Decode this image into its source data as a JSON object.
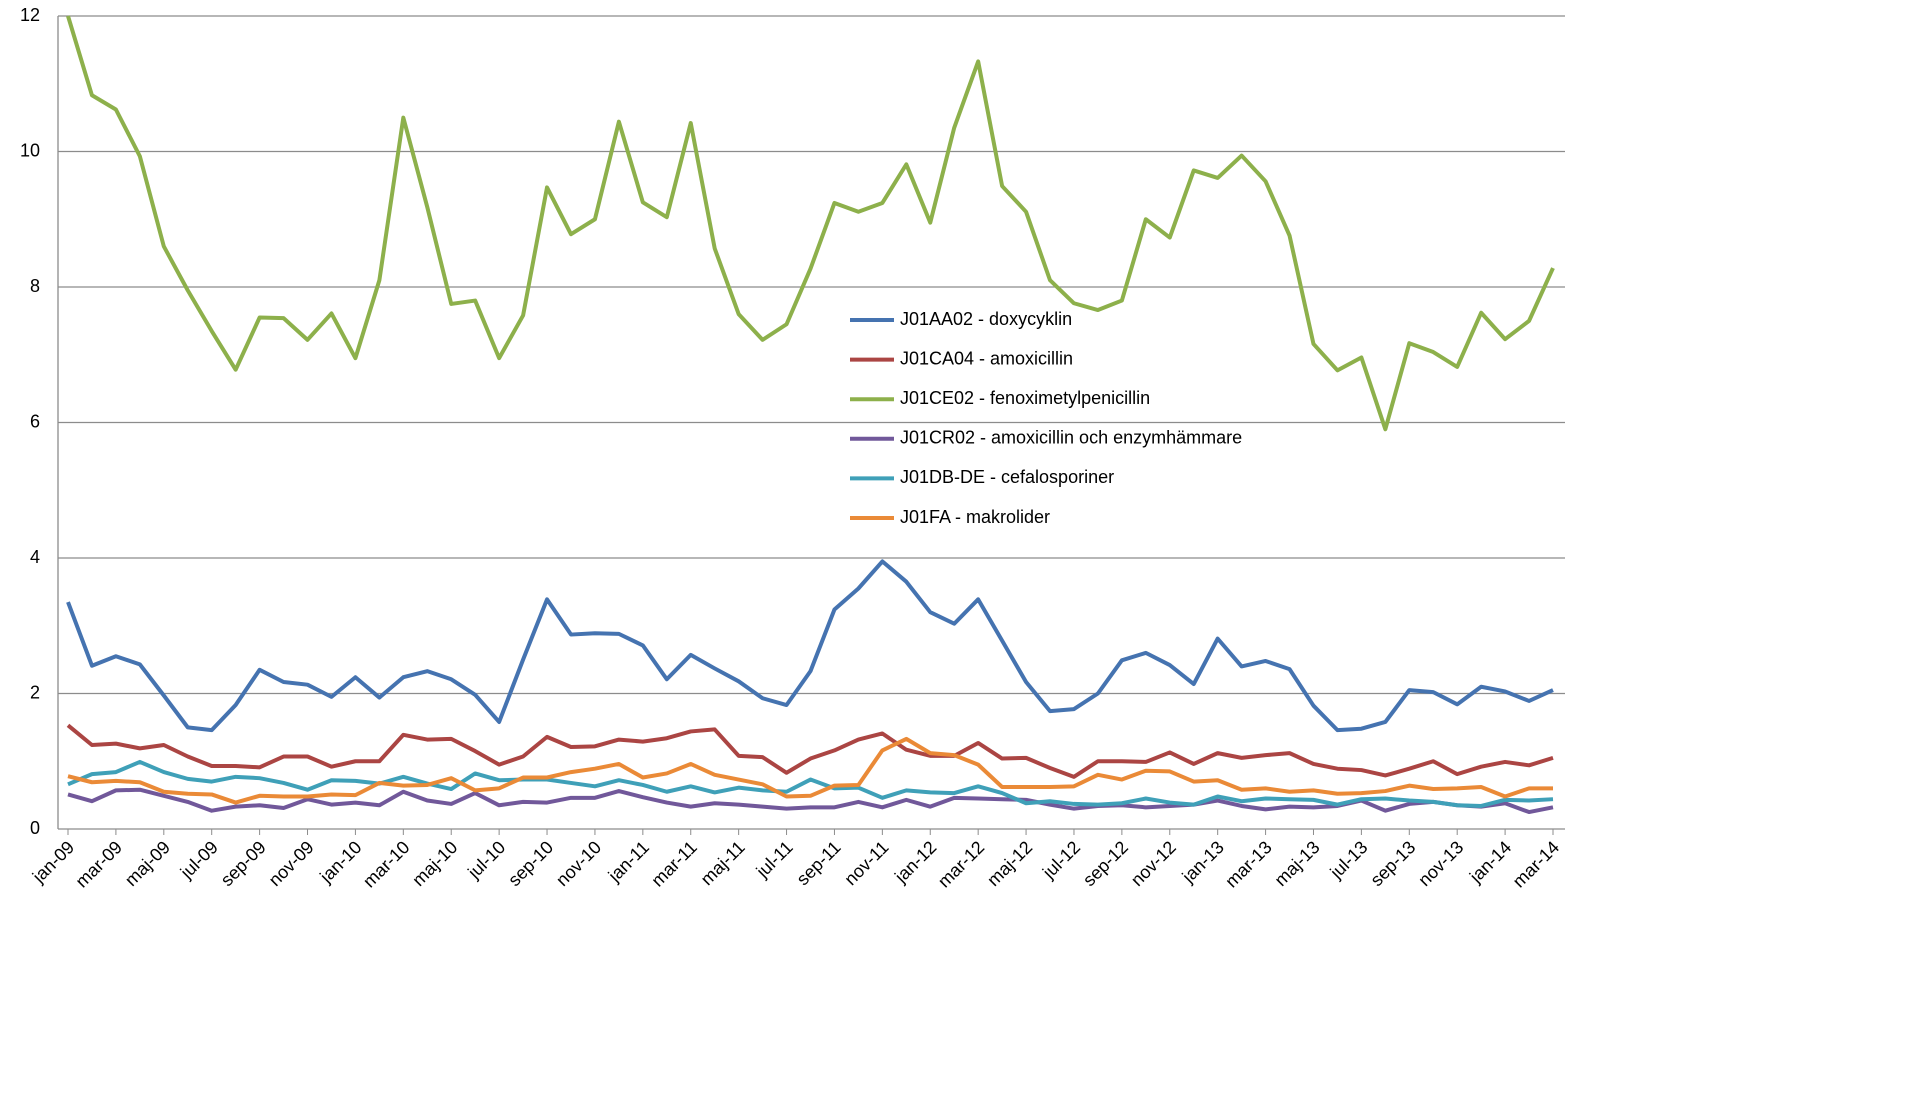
{
  "chart_data": {
    "type": "line",
    "categories": [
      "jan-09",
      null,
      "mar-09",
      null,
      "maj-09",
      null,
      "jul-09",
      null,
      "sep-09",
      null,
      "nov-09",
      null,
      "jan-10",
      null,
      "mar-10",
      null,
      "maj-10",
      null,
      "jul-10",
      null,
      "sep-10",
      null,
      "nov-10",
      null,
      "jan-11",
      null,
      "mar-11",
      null,
      "maj-11",
      null,
      "jul-11",
      null,
      "sep-11",
      null,
      "nov-11",
      null,
      "jan-12",
      null,
      "mar-12",
      null,
      "maj-12",
      null,
      "jul-12",
      null,
      "sep-12",
      null,
      "nov-12",
      null,
      "jan-13",
      null,
      "mar-13",
      null,
      "maj-13",
      null,
      "jul-13",
      null,
      "sep-13",
      null,
      "nov-13",
      null,
      "jan-14",
      null,
      "mar-14"
    ],
    "series": [
      {
        "name": "J01AA02 - doxycyklin",
        "color": "#4573b0",
        "values": [
          3.35,
          2.41,
          2.55,
          2.43,
          1.97,
          1.5,
          1.46,
          1.83,
          2.35,
          2.17,
          2.13,
          1.95,
          2.24,
          1.94,
          2.24,
          2.33,
          2.21,
          1.98,
          1.58,
          2.5,
          3.39,
          2.87,
          2.89,
          2.88,
          2.71,
          2.21,
          2.57,
          2.37,
          2.18,
          1.93,
          1.83,
          2.33,
          3.24,
          3.55,
          3.95,
          3.65,
          3.2,
          3.03,
          3.39,
          2.78,
          2.17,
          1.74,
          1.77,
          2.0,
          2.49,
          2.6,
          2.42,
          2.14,
          2.81,
          2.4,
          2.48,
          2.36,
          1.82,
          1.46,
          1.48,
          1.58,
          2.05,
          2.02,
          1.84,
          2.1,
          2.03,
          1.89,
          2.05
        ]
      },
      {
        "name": "J01CA04 - amoxicillin",
        "color": "#ab4543",
        "values": [
          1.53,
          1.24,
          1.26,
          1.19,
          1.24,
          1.07,
          0.93,
          0.93,
          0.91,
          1.07,
          1.07,
          0.92,
          1.0,
          1.0,
          1.39,
          1.32,
          1.33,
          1.15,
          0.95,
          1.07,
          1.36,
          1.21,
          1.22,
          1.32,
          1.29,
          1.34,
          1.44,
          1.47,
          1.08,
          1.06,
          0.83,
          1.04,
          1.16,
          1.32,
          1.41,
          1.17,
          1.08,
          1.08,
          1.27,
          1.04,
          1.05,
          0.9,
          0.77,
          1.0,
          1.0,
          0.99,
          1.13,
          0.96,
          1.12,
          1.05,
          1.09,
          1.12,
          0.96,
          0.89,
          0.87,
          0.79,
          0.89,
          1.0,
          0.81,
          0.92,
          0.99,
          0.94,
          1.05
        ]
      },
      {
        "name": "J01CE02 - fenoximetylpenicillin",
        "color": "#8db04b",
        "values": [
          12,
          10.83,
          10.62,
          9.93,
          8.6,
          7.95,
          7.35,
          6.78,
          7.55,
          7.54,
          7.22,
          7.61,
          6.95,
          8.1,
          10.5,
          9.18,
          7.75,
          7.8,
          6.95,
          7.58,
          9.47,
          8.78,
          9.0,
          10.44,
          9.25,
          9.03,
          10.42,
          8.57,
          7.6,
          7.22,
          7.45,
          8.27,
          9.24,
          9.11,
          9.24,
          9.81,
          8.95,
          10.35,
          11.33,
          9.49,
          9.11,
          8.1,
          7.76,
          7.66,
          7.8,
          9.0,
          8.73,
          9.72,
          9.61,
          9.94,
          9.56,
          8.76,
          7.16,
          6.77,
          6.96,
          5.9,
          7.17,
          7.04,
          6.82,
          7.62,
          7.23,
          7.5,
          8.28
        ]
      },
      {
        "name": "J01CR02 - amoxicillin och enzymhämmare",
        "color": "#71589a",
        "values": [
          0.51,
          0.41,
          0.57,
          0.58,
          0.49,
          0.4,
          0.27,
          0.33,
          0.35,
          0.31,
          0.44,
          0.36,
          0.39,
          0.35,
          0.55,
          0.42,
          0.37,
          0.53,
          0.35,
          0.4,
          0.39,
          0.46,
          0.46,
          0.56,
          0.47,
          0.39,
          0.33,
          0.38,
          0.36,
          0.33,
          0.3,
          0.32,
          0.32,
          0.4,
          0.32,
          0.43,
          0.33,
          0.46,
          0.45,
          0.44,
          0.43,
          0.36,
          0.3,
          0.34,
          0.35,
          0.32,
          0.34,
          0.36,
          0.42,
          0.34,
          0.29,
          0.33,
          0.32,
          0.34,
          0.42,
          0.27,
          0.37,
          0.4,
          0.35,
          0.33,
          0.38,
          0.25,
          0.32
        ]
      },
      {
        "name": "J01DB-DE - cefalosporiner",
        "color": "#3fa0b8",
        "values": [
          0.66,
          0.81,
          0.84,
          0.99,
          0.84,
          0.74,
          0.7,
          0.77,
          0.75,
          0.68,
          0.58,
          0.72,
          0.71,
          0.67,
          0.77,
          0.67,
          0.59,
          0.82,
          0.72,
          0.73,
          0.73,
          0.68,
          0.63,
          0.72,
          0.65,
          0.55,
          0.63,
          0.54,
          0.61,
          0.57,
          0.55,
          0.73,
          0.6,
          0.61,
          0.46,
          0.57,
          0.54,
          0.53,
          0.63,
          0.53,
          0.38,
          0.41,
          0.37,
          0.36,
          0.38,
          0.45,
          0.39,
          0.36,
          0.48,
          0.41,
          0.45,
          0.44,
          0.43,
          0.36,
          0.44,
          0.45,
          0.42,
          0.4,
          0.35,
          0.34,
          0.43,
          0.42,
          0.44
        ]
      },
      {
        "name": "J01FA - makrolider",
        "color": "#ea8a37",
        "values": [
          0.78,
          0.69,
          0.71,
          0.69,
          0.55,
          0.52,
          0.51,
          0.39,
          0.49,
          0.48,
          0.48,
          0.51,
          0.5,
          0.68,
          0.64,
          0.65,
          0.75,
          0.57,
          0.6,
          0.76,
          0.76,
          0.84,
          0.89,
          0.96,
          0.76,
          0.82,
          0.96,
          0.8,
          0.73,
          0.66,
          0.48,
          0.49,
          0.64,
          0.65,
          1.16,
          1.33,
          1.12,
          1.09,
          0.95,
          0.62,
          0.62,
          0.62,
          0.63,
          0.8,
          0.73,
          0.86,
          0.85,
          0.7,
          0.72,
          0.58,
          0.6,
          0.55,
          0.57,
          0.52,
          0.53,
          0.56,
          0.64,
          0.59,
          0.6,
          0.62,
          0.48,
          0.6,
          0.6
        ]
      }
    ],
    "ylim": [
      0,
      12
    ],
    "yticks": [
      0,
      2,
      4,
      6,
      8,
      10,
      12
    ],
    "grid": true,
    "legend": "center"
  }
}
